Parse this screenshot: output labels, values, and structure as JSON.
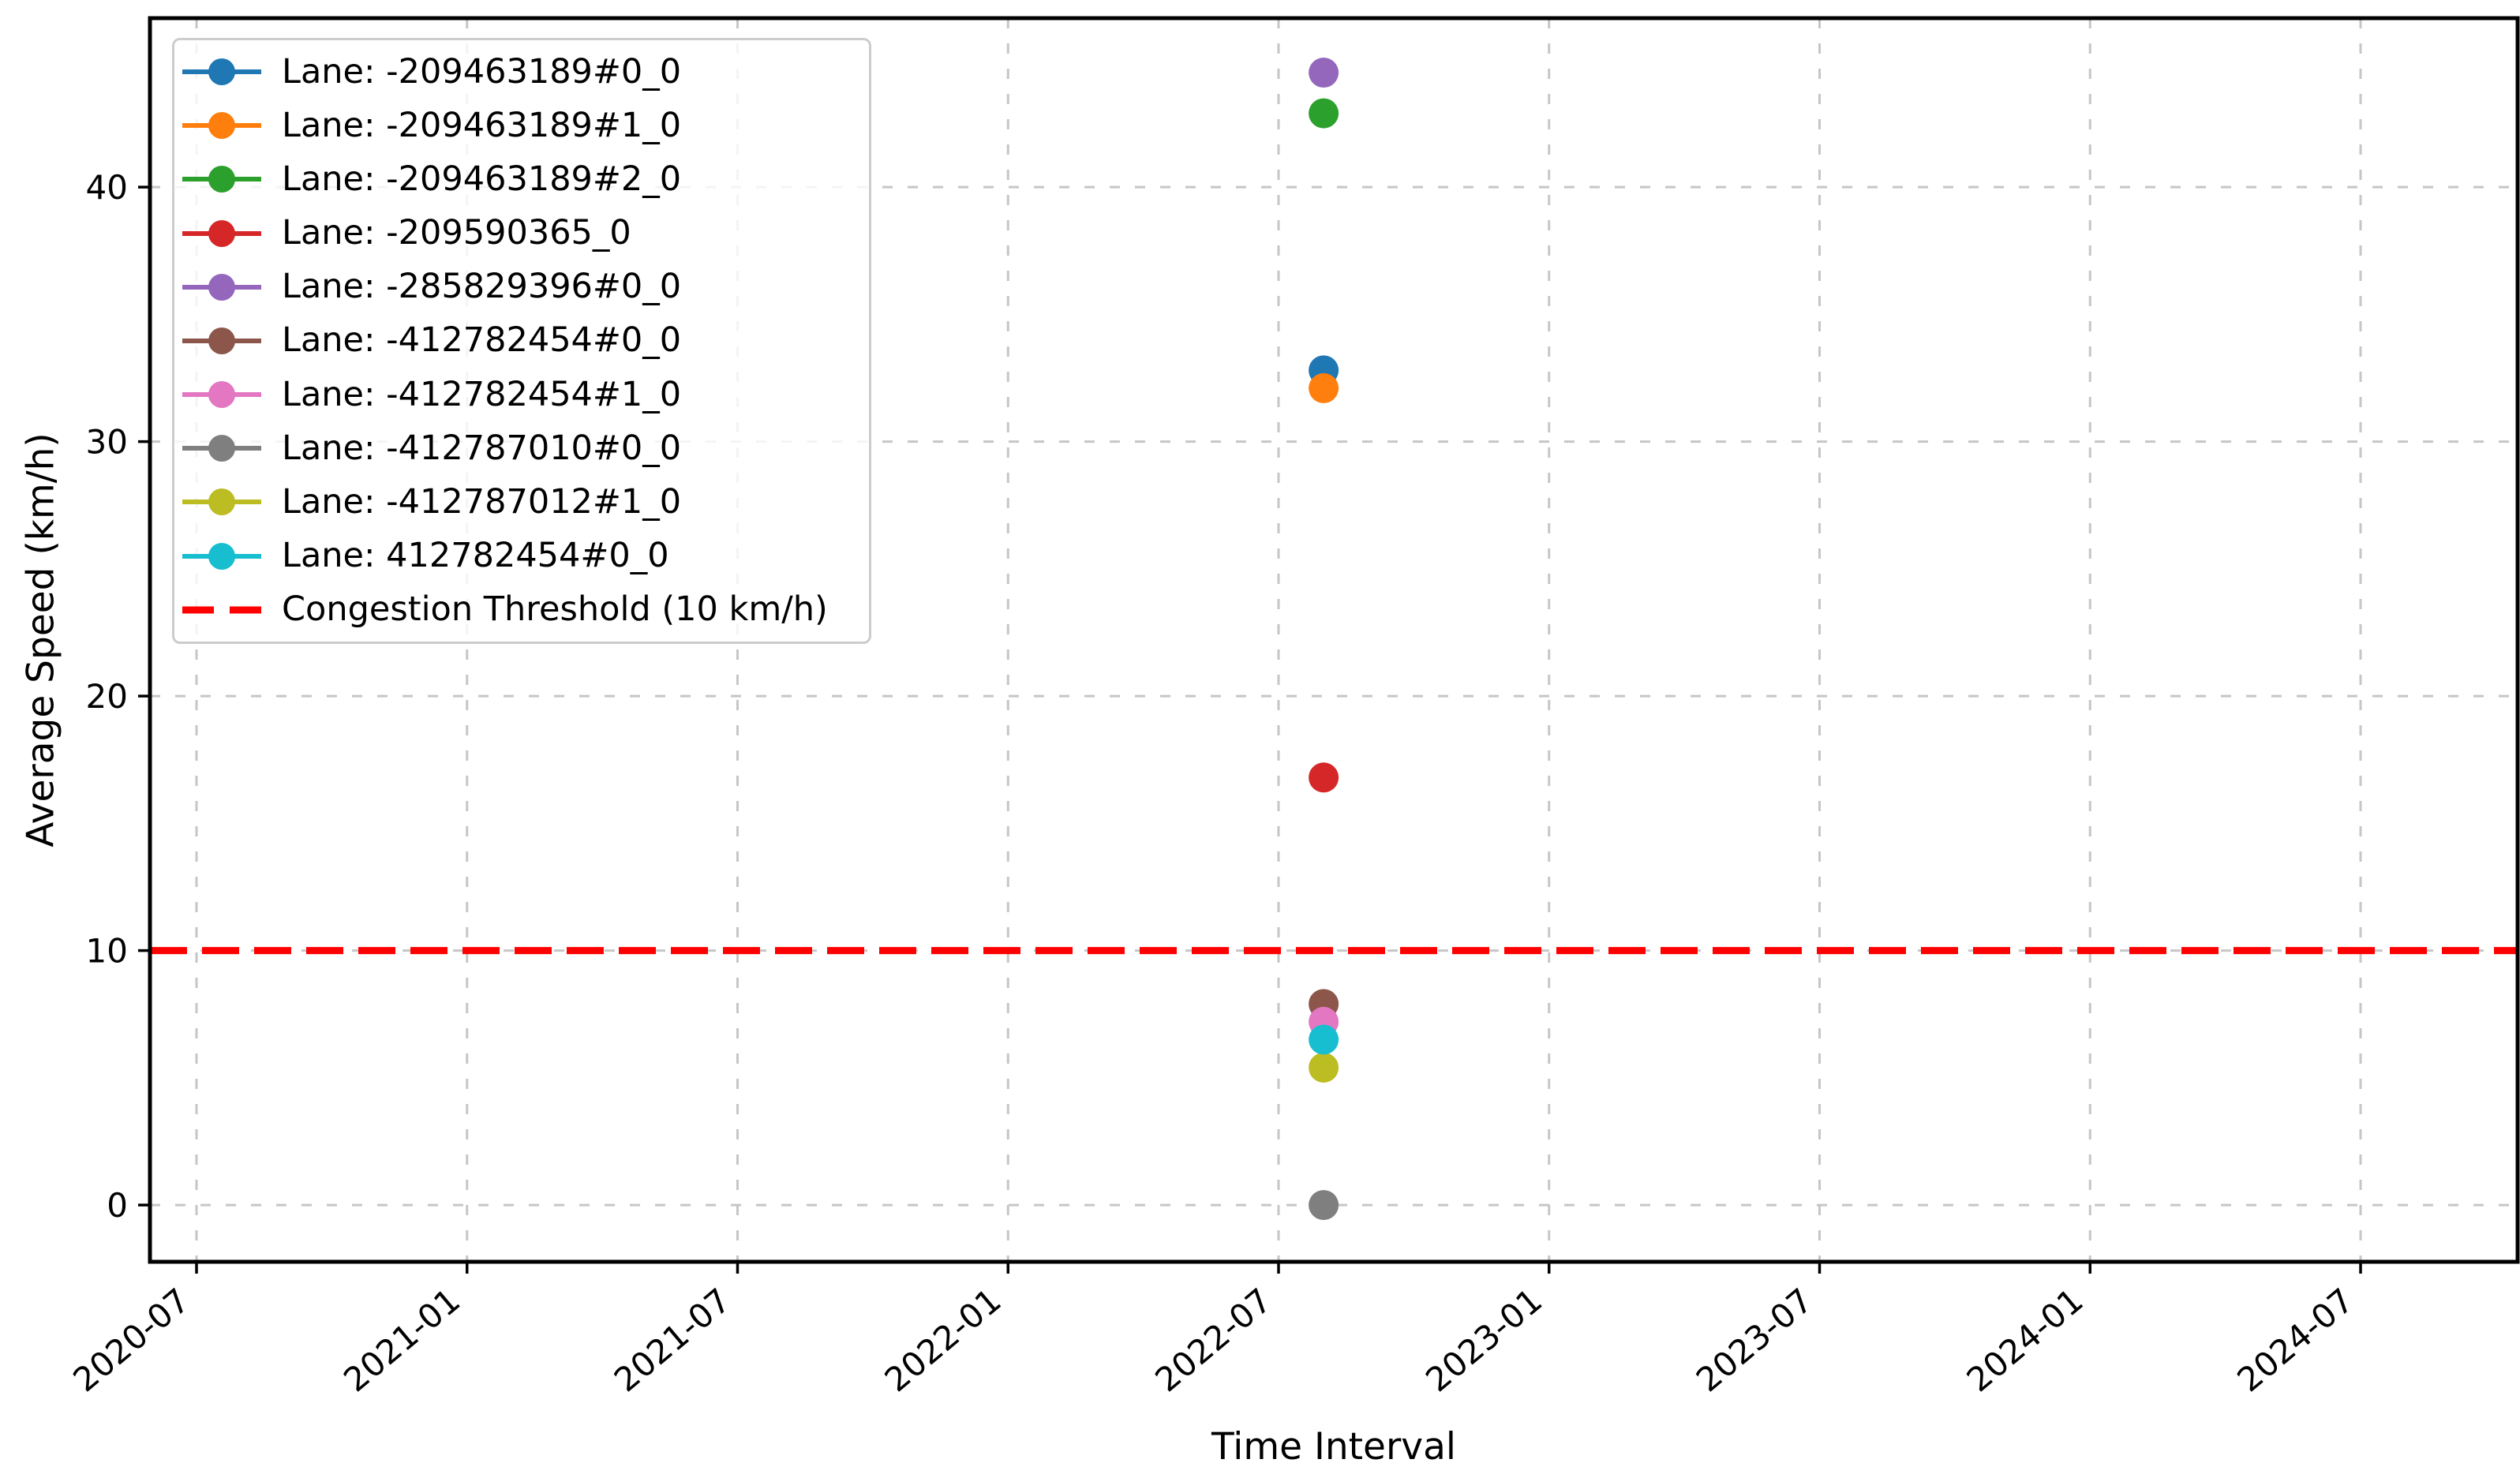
{
  "chart_data": {
    "type": "scatter",
    "title": "",
    "xlabel": "Time Interval",
    "ylabel": "Average Speed (km/h)",
    "x_tick_labels": [
      "2020-07",
      "2021-01",
      "2021-07",
      "2022-01",
      "2022-07",
      "2023-01",
      "2023-07",
      "2024-01",
      "2024-07"
    ],
    "y_ticks": [
      0,
      10,
      20,
      30,
      40
    ],
    "ylim": [
      -2.23,
      46.64
    ],
    "xlim": [
      "2020-06",
      "2024-10"
    ],
    "grid": true,
    "legend_position": "upper left",
    "series": [
      {
        "label": "Lane: -209463189#0_0",
        "color": "#1f77b4",
        "x": "2022-08",
        "y": 32.8
      },
      {
        "label": "Lane: -209463189#1_0",
        "color": "#ff7f0e",
        "x": "2022-08",
        "y": 32.1
      },
      {
        "label": "Lane: -209463189#2_0",
        "color": "#2ca02c",
        "x": "2022-08",
        "y": 42.9
      },
      {
        "label": "Lane: -209590365_0",
        "color": "#d62728",
        "x": "2022-08",
        "y": 16.8
      },
      {
        "label": "Lane: -285829396#0_0",
        "color": "#9467bd",
        "x": "2022-08",
        "y": 44.5
      },
      {
        "label": "Lane: -412782454#0_0",
        "color": "#8c564b",
        "x": "2022-08",
        "y": 7.9
      },
      {
        "label": "Lane: -412782454#1_0",
        "color": "#e377c2",
        "x": "2022-08",
        "y": 7.2
      },
      {
        "label": "Lane: -412787010#0_0",
        "color": "#7f7f7f",
        "x": "2022-08",
        "y": 0.0
      },
      {
        "label": "Lane: -412787012#1_0",
        "color": "#bcbd22",
        "x": "2022-08",
        "y": 5.4
      },
      {
        "label": "Lane: 412782454#0_0",
        "color": "#17becf",
        "x": "2022-08",
        "y": 6.5
      }
    ],
    "threshold": {
      "label": "Congestion Threshold (10 km/h)",
      "value": 10,
      "color": "#ff0000",
      "linestyle": "dashed"
    }
  }
}
